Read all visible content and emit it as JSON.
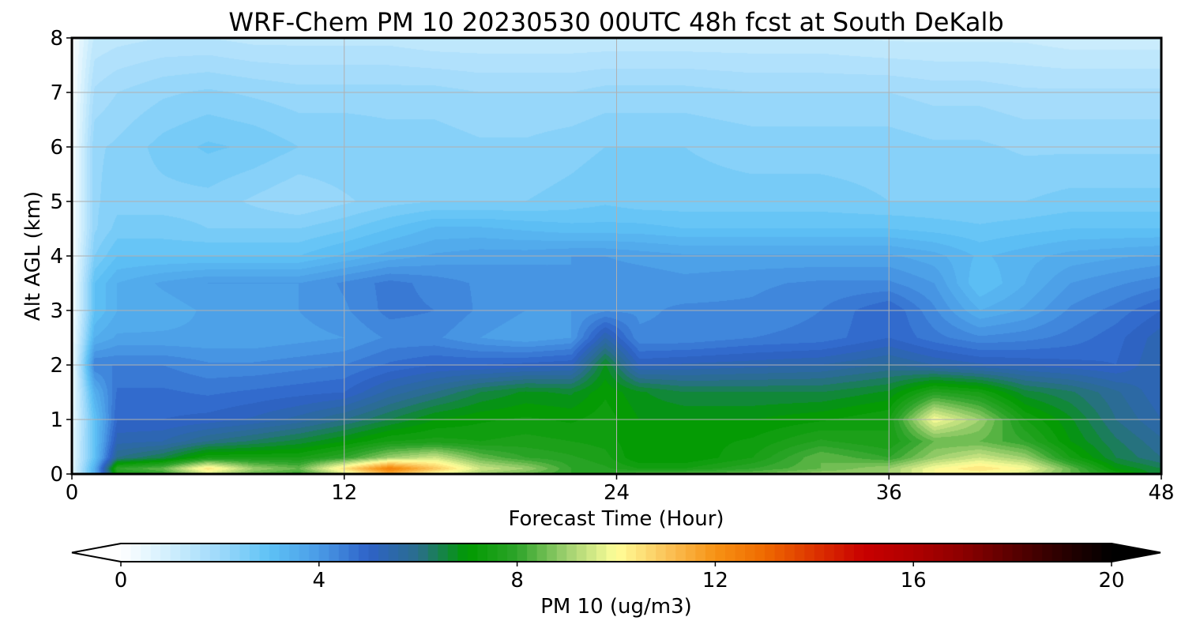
{
  "chart_data": {
    "type": "heatmap",
    "title": "WRF-Chem PM 10  20230530 00UTC 48h fcst at South DeKalb",
    "xlabel": "Forecast Time (Hour)",
    "ylabel": "Alt AGL (km)",
    "x_ticks": [
      "0",
      "12",
      "24",
      "36",
      "48"
    ],
    "y_ticks": [
      "0",
      "1",
      "2",
      "3",
      "4",
      "5",
      "6",
      "7",
      "8"
    ],
    "xlim": [
      0,
      48
    ],
    "ylim": [
      0,
      8
    ],
    "grid": true,
    "colorbar": {
      "label": "PM 10  (ug/m3)",
      "ticks": [
        "0",
        "4",
        "8",
        "12",
        "16",
        "20"
      ],
      "range": [
        0,
        20
      ],
      "extend": "both",
      "stops": [
        {
          "v": 0,
          "c": "#ffffff"
        },
        {
          "v": 1,
          "c": "#cfeefd"
        },
        {
          "v": 2,
          "c": "#9dd9fb"
        },
        {
          "v": 3,
          "c": "#5ec2f5"
        },
        {
          "v": 4,
          "c": "#4a9be6"
        },
        {
          "v": 5,
          "c": "#2e62c8"
        },
        {
          "v": 6,
          "c": "#2a6e8c"
        },
        {
          "v": 7,
          "c": "#009a00"
        },
        {
          "v": 8,
          "c": "#2ea42a"
        },
        {
          "v": 9,
          "c": "#9fd070"
        },
        {
          "v": 10,
          "c": "#ffff99"
        },
        {
          "v": 11,
          "c": "#fbc45a"
        },
        {
          "v": 12,
          "c": "#f79214"
        },
        {
          "v": 13,
          "c": "#ef6a00"
        },
        {
          "v": 14,
          "c": "#dd3300"
        },
        {
          "v": 15,
          "c": "#c80000"
        },
        {
          "v": 16,
          "c": "#b00000"
        },
        {
          "v": 17,
          "c": "#8c0000"
        },
        {
          "v": 18,
          "c": "#5a0000"
        },
        {
          "v": 19,
          "c": "#2a0000"
        },
        {
          "v": 20,
          "c": "#000000"
        }
      ]
    },
    "times": [
      0,
      1,
      2,
      4,
      6,
      8,
      10,
      12,
      14,
      16,
      18,
      20,
      22,
      23.5,
      25,
      27,
      30,
      33,
      36,
      38,
      40,
      42,
      44,
      46,
      48
    ],
    "heights": [
      0,
      0.1,
      0.3,
      0.6,
      1,
      1.5,
      2,
      2.5,
      3,
      3.5,
      4,
      4.5,
      5,
      6,
      7,
      8
    ],
    "values": [
      [
        0.5,
        3.5,
        7.5,
        8.0,
        9.5,
        8.5,
        8.0,
        9.5,
        11.5,
        10.0,
        9.0,
        8.5,
        8.0,
        8.0,
        8.5,
        8.5,
        8.5,
        9.0,
        9.0,
        10.0,
        10.0,
        9.5,
        8.5,
        7.5,
        6.5
      ],
      [
        0.5,
        3.5,
        8.0,
        8.5,
        10.5,
        9.0,
        8.5,
        10.5,
        12.5,
        11.0,
        9.5,
        9.0,
        8.0,
        7.8,
        7.5,
        7.5,
        8.0,
        8.5,
        9.0,
        10.0,
        10.5,
        10.0,
        8.5,
        7.0,
        6.5
      ],
      [
        0.5,
        3.0,
        6.0,
        6.5,
        7.5,
        7.5,
        7.5,
        8.0,
        9.0,
        9.5,
        8.5,
        8.0,
        7.8,
        7.6,
        7.0,
        7.0,
        7.5,
        8.5,
        8.0,
        9.0,
        9.5,
        9.0,
        7.5,
        6.5,
        6.0
      ],
      [
        0.5,
        3.0,
        5.4,
        5.5,
        6.0,
        6.3,
        6.6,
        7.0,
        7.5,
        7.6,
        7.5,
        7.6,
        7.5,
        7.4,
        7.0,
        7.1,
        7.3,
        7.8,
        7.5,
        8.5,
        8.5,
        8.0,
        7.0,
        6.3,
        5.8
      ],
      [
        0.4,
        3.0,
        5.0,
        5.0,
        5.1,
        5.3,
        5.6,
        6.0,
        6.5,
        7.0,
        7.2,
        7.3,
        7.2,
        7.4,
        7.0,
        7.0,
        7.0,
        7.2,
        7.5,
        10.0,
        9.0,
        7.5,
        6.8,
        6.0,
        5.5
      ],
      [
        0.3,
        3.5,
        4.8,
        4.8,
        4.7,
        4.8,
        4.9,
        5.0,
        5.6,
        6.0,
        6.5,
        6.8,
        6.7,
        7.2,
        6.8,
        6.5,
        6.5,
        6.5,
        6.8,
        7.8,
        7.5,
        6.6,
        6.3,
        5.8,
        5.3
      ],
      [
        0.2,
        4.5,
        4.5,
        4.5,
        4.3,
        4.3,
        4.4,
        4.5,
        4.8,
        5.0,
        5.0,
        5.1,
        5.2,
        6.8,
        5.2,
        5.3,
        5.4,
        5.5,
        5.8,
        5.5,
        5.3,
        5.2,
        5.1,
        5.0,
        5.5
      ],
      [
        0.2,
        3.5,
        3.8,
        3.8,
        3.8,
        3.8,
        3.9,
        4.0,
        4.3,
        4.3,
        4.0,
        3.8,
        4.0,
        5.5,
        4.3,
        4.3,
        4.5,
        4.6,
        5.0,
        4.6,
        4.3,
        4.4,
        4.6,
        4.9,
        5.4
      ],
      [
        0.1,
        3.0,
        3.5,
        3.6,
        3.8,
        3.8,
        4.0,
        4.2,
        4.6,
        4.5,
        4.2,
        4.0,
        4.0,
        4.2,
        4.2,
        4.3,
        4.3,
        4.5,
        5.0,
        4.3,
        3.5,
        3.8,
        4.3,
        4.6,
        5.0
      ],
      [
        0.1,
        3.0,
        3.5,
        3.8,
        4.0,
        4.0,
        4.0,
        4.3,
        4.6,
        4.4,
        4.2,
        4.2,
        4.0,
        4.2,
        4.2,
        4.1,
        4.2,
        4.3,
        4.3,
        4.0,
        3.0,
        3.5,
        4.0,
        4.2,
        4.4
      ],
      [
        0.1,
        2.5,
        3.0,
        3.0,
        3.0,
        3.0,
        3.0,
        3.3,
        3.6,
        3.8,
        3.9,
        3.9,
        4.0,
        4.0,
        3.9,
        3.8,
        3.8,
        3.8,
        3.8,
        3.6,
        3.2,
        3.4,
        3.6,
        3.7,
        3.8
      ],
      [
        0.1,
        2.2,
        2.6,
        2.6,
        2.5,
        2.5,
        2.5,
        2.7,
        3.0,
        3.3,
        3.3,
        3.2,
        3.1,
        3.1,
        3.1,
        3.0,
        3.0,
        3.0,
        3.0,
        2.9,
        2.8,
        2.9,
        3.0,
        3.0,
        3.0
      ],
      [
        0.1,
        2.2,
        2.4,
        2.4,
        2.4,
        2.2,
        2.0,
        2.2,
        2.4,
        2.5,
        2.5,
        2.5,
        2.6,
        2.7,
        2.6,
        2.6,
        2.6,
        2.6,
        2.5,
        2.5,
        2.5,
        2.5,
        2.6,
        2.6,
        2.6
      ],
      [
        0.1,
        2.2,
        2.3,
        2.6,
        2.8,
        2.7,
        2.5,
        2.5,
        2.4,
        2.4,
        2.3,
        2.3,
        2.4,
        2.5,
        2.5,
        2.5,
        2.4,
        2.4,
        2.4,
        2.3,
        2.3,
        2.2,
        2.2,
        2.2,
        2.2
      ],
      [
        0.1,
        1.8,
        2.0,
        2.2,
        2.3,
        2.2,
        2.1,
        2.1,
        2.1,
        2.1,
        2.0,
        2.0,
        2.0,
        2.1,
        2.1,
        2.1,
        2.0,
        2.0,
        2.0,
        1.9,
        1.9,
        1.8,
        1.8,
        1.8,
        1.8
      ],
      [
        0.1,
        1.3,
        1.4,
        1.5,
        1.5,
        1.4,
        1.4,
        1.4,
        1.4,
        1.3,
        1.3,
        1.3,
        1.3,
        1.3,
        1.3,
        1.3,
        1.3,
        1.3,
        1.2,
        1.2,
        1.2,
        1.2,
        1.1,
        1.1,
        1.1
      ]
    ]
  }
}
